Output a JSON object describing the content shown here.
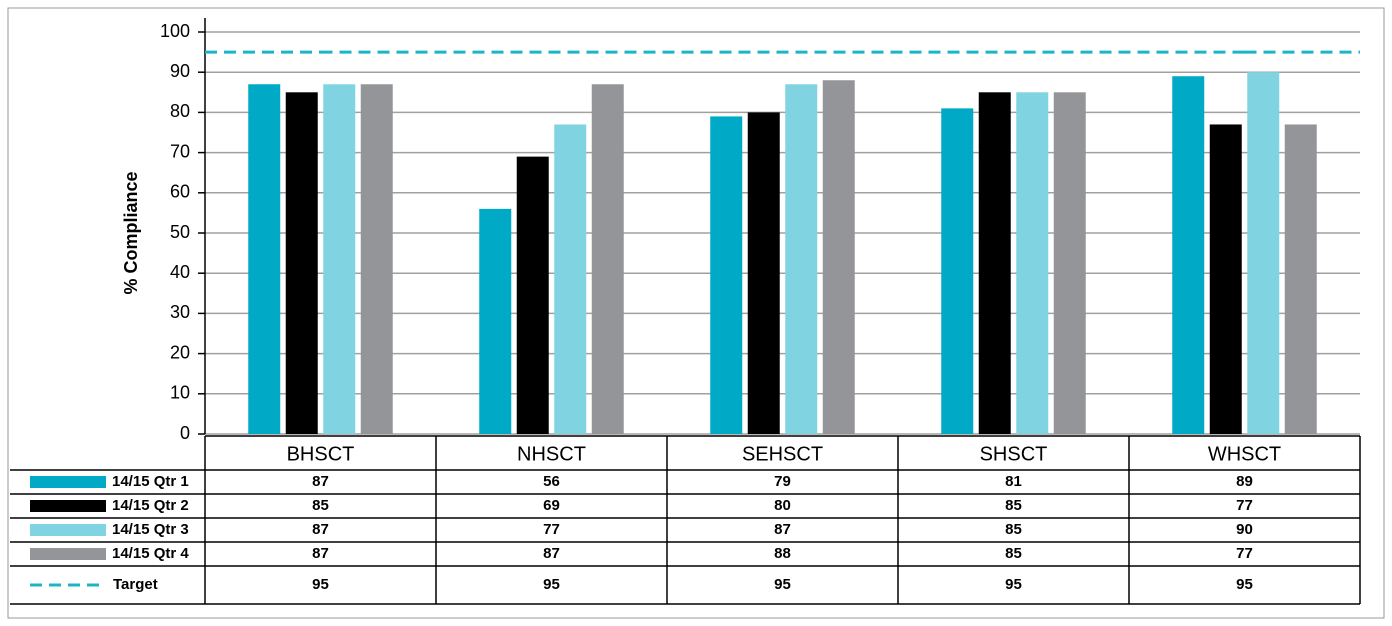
{
  "chart_data": {
    "type": "bar",
    "ylabel": "% Compliance",
    "categories": [
      "BHSCT",
      "NHSCT",
      "SEHSCT",
      "SHSCT",
      "WHSCT"
    ],
    "series": [
      {
        "name": "14/15 Qtr 1",
        "color": "#00a9c5",
        "values": [
          87,
          56,
          79,
          81,
          89
        ]
      },
      {
        "name": "14/15 Qtr 2",
        "color": "#000000",
        "values": [
          85,
          69,
          80,
          85,
          77
        ]
      },
      {
        "name": "14/15 Qtr 3",
        "color": "#80d4e1",
        "values": [
          87,
          77,
          87,
          85,
          90
        ]
      },
      {
        "name": "14/15 Qtr 4",
        "color": "#939598",
        "values": [
          87,
          87,
          88,
          85,
          77
        ]
      },
      {
        "name": "Target",
        "color": "#1bb5c5",
        "line_style": "dashed",
        "values": [
          95,
          95,
          95,
          95,
          95
        ]
      }
    ],
    "ylim": [
      0,
      100
    ],
    "yticks": [
      0,
      10,
      20,
      30,
      40,
      50,
      60,
      70,
      80,
      90,
      100
    ],
    "grid": true
  }
}
